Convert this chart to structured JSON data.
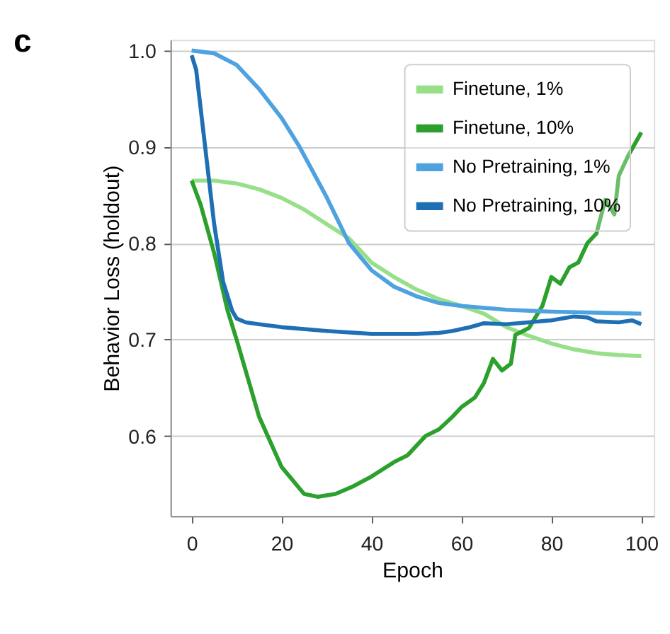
{
  "chart_data": {
    "type": "line",
    "title": "c",
    "xlabel": "Epoch",
    "ylabel": "Behavior Loss (holdout)",
    "xlim": [
      -4.7,
      102.8
    ],
    "ylim": [
      0.517,
      1.011
    ],
    "xticks": [
      0,
      20,
      40,
      60,
      80,
      100
    ],
    "yticks": [
      0.6,
      0.7,
      0.8,
      0.9,
      {
        "value": 1.0,
        "label": "1.0"
      }
    ],
    "grid": "y",
    "legend": "top right",
    "line_style": "solid",
    "marker": "none",
    "series": [
      {
        "name": "Finetune, 1%",
        "color": "#98df8a",
        "x": [
          0,
          5,
          10,
          15,
          20,
          25,
          30,
          35,
          40,
          45,
          50,
          55,
          60,
          65,
          70,
          75,
          80,
          85,
          90,
          95,
          100
        ],
        "values": [
          0.865,
          0.865,
          0.862,
          0.856,
          0.847,
          0.835,
          0.82,
          0.805,
          0.78,
          0.765,
          0.752,
          0.742,
          0.735,
          0.727,
          0.713,
          0.704,
          0.696,
          0.69,
          0.686,
          0.684,
          0.683
        ]
      },
      {
        "name": "Finetune, 10%",
        "color": "#2ca02c",
        "x": [
          0,
          2,
          5,
          8,
          10,
          15,
          20,
          25,
          28,
          32,
          36,
          40,
          45,
          48,
          52,
          55,
          58,
          60,
          63,
          65,
          67,
          69,
          71,
          72,
          75,
          78,
          80,
          82,
          84,
          86,
          88,
          90,
          92,
          94,
          95,
          97,
          100
        ],
        "values": [
          0.865,
          0.84,
          0.79,
          0.73,
          0.7,
          0.62,
          0.568,
          0.54,
          0.537,
          0.54,
          0.548,
          0.558,
          0.573,
          0.58,
          0.6,
          0.607,
          0.62,
          0.63,
          0.64,
          0.655,
          0.68,
          0.668,
          0.675,
          0.705,
          0.712,
          0.735,
          0.765,
          0.758,
          0.775,
          0.78,
          0.8,
          0.81,
          0.845,
          0.83,
          0.87,
          0.89,
          0.915
        ]
      },
      {
        "name": "No Pretraining, 1%",
        "color": "#4ea2e0",
        "x": [
          0,
          5,
          10,
          15,
          20,
          24,
          30,
          35,
          40,
          45,
          50,
          55,
          60,
          70,
          80,
          90,
          100
        ],
        "values": [
          1.0,
          0.997,
          0.985,
          0.96,
          0.93,
          0.9,
          0.848,
          0.8,
          0.772,
          0.755,
          0.745,
          0.738,
          0.735,
          0.731,
          0.729,
          0.728,
          0.727
        ]
      },
      {
        "name": "No Pretraining, 10%",
        "color": "#1f6fb4",
        "x": [
          0,
          1,
          3,
          5,
          7,
          9,
          10,
          12,
          15,
          20,
          30,
          40,
          50,
          55,
          58,
          62,
          65,
          70,
          75,
          80,
          85,
          88,
          90,
          95,
          98,
          100
        ],
        "values": [
          0.995,
          0.98,
          0.9,
          0.82,
          0.76,
          0.73,
          0.722,
          0.718,
          0.716,
          0.713,
          0.709,
          0.706,
          0.706,
          0.707,
          0.709,
          0.713,
          0.717,
          0.716,
          0.718,
          0.72,
          0.724,
          0.723,
          0.719,
          0.718,
          0.72,
          0.716
        ]
      }
    ]
  }
}
